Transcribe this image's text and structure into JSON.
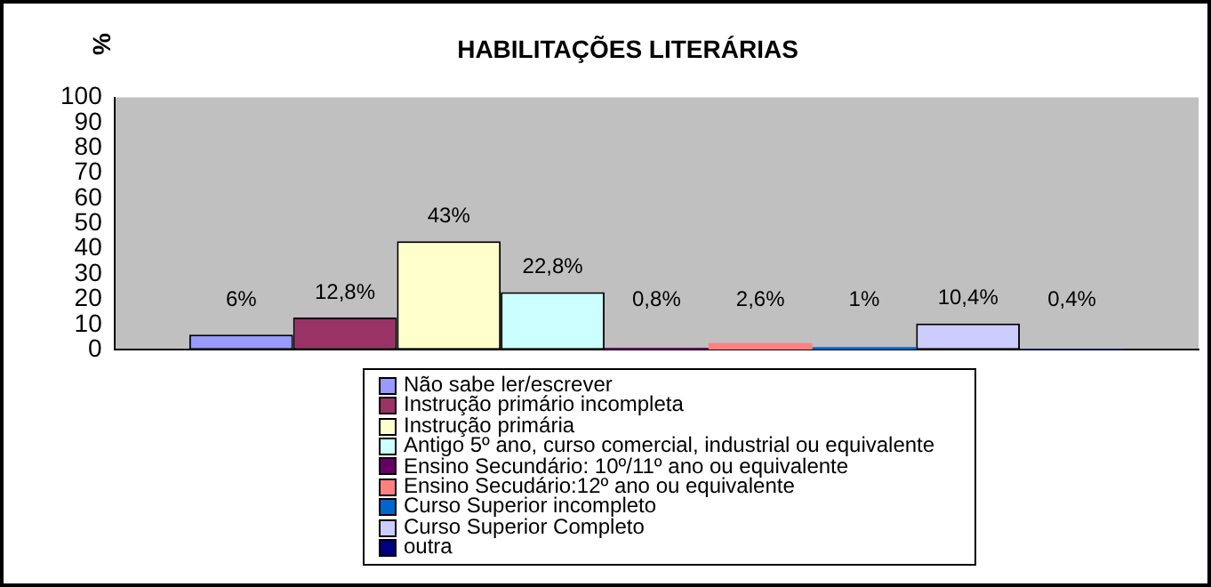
{
  "chart_data": {
    "type": "bar",
    "title": "HABILITAÇÕES LITERÁRIAS",
    "ylabel": "%",
    "categories": [
      null
    ],
    "ylim": [
      0,
      100
    ],
    "yticks": [
      0,
      10,
      20,
      30,
      40,
      50,
      60,
      70,
      80,
      90,
      100
    ],
    "grid": false,
    "legend": "bottom",
    "series": [
      {
        "name": "Não sabe ler/escrever",
        "color": "#9999ff",
        "values": [
          6
        ],
        "value_labels": [
          "6%"
        ]
      },
      {
        "name": "Instrução primário incompleta",
        "color": "#993366",
        "values": [
          12.8
        ],
        "value_labels": [
          "12,8%"
        ]
      },
      {
        "name": "Instrução primária",
        "color": "#ffffcc",
        "values": [
          43
        ],
        "value_labels": [
          "43%"
        ]
      },
      {
        "name": "Antigo 5º ano, curso comercial, industrial ou equivalente",
        "color": "#ccffff",
        "values": [
          22.8
        ],
        "value_labels": [
          "22,8%"
        ]
      },
      {
        "name": "Ensino Secundário: 10º/11º ano ou equivalente",
        "color": "#660066",
        "values": [
          0.8
        ],
        "value_labels": [
          "0,8%"
        ]
      },
      {
        "name": "Ensino Secudário:12º ano ou equivalente",
        "color": "#ff8080",
        "values": [
          2.6
        ],
        "value_labels": [
          "2,6%"
        ]
      },
      {
        "name": "Curso Superior incompleto",
        "color": "#0066cc",
        "values": [
          1
        ],
        "value_labels": [
          "1%"
        ]
      },
      {
        "name": "Curso Superior Completo",
        "color": "#ccccff",
        "values": [
          10.4
        ],
        "value_labels": [
          "10,4%"
        ]
      },
      {
        "name": "outra",
        "color": "#000080",
        "values": [
          0.4
        ],
        "value_labels": [
          "0,4%"
        ]
      }
    ]
  }
}
